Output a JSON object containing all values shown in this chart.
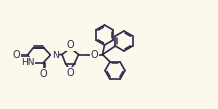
{
  "bg_color": "#fdf8ec",
  "line_color": "#2a2a4a",
  "line_width": 1.2,
  "font_size": 6.5,
  "figw": 2.18,
  "figh": 1.09,
  "dpi": 100,
  "xlim": [
    0,
    21.8
  ],
  "ylim": [
    0,
    10.9
  ]
}
